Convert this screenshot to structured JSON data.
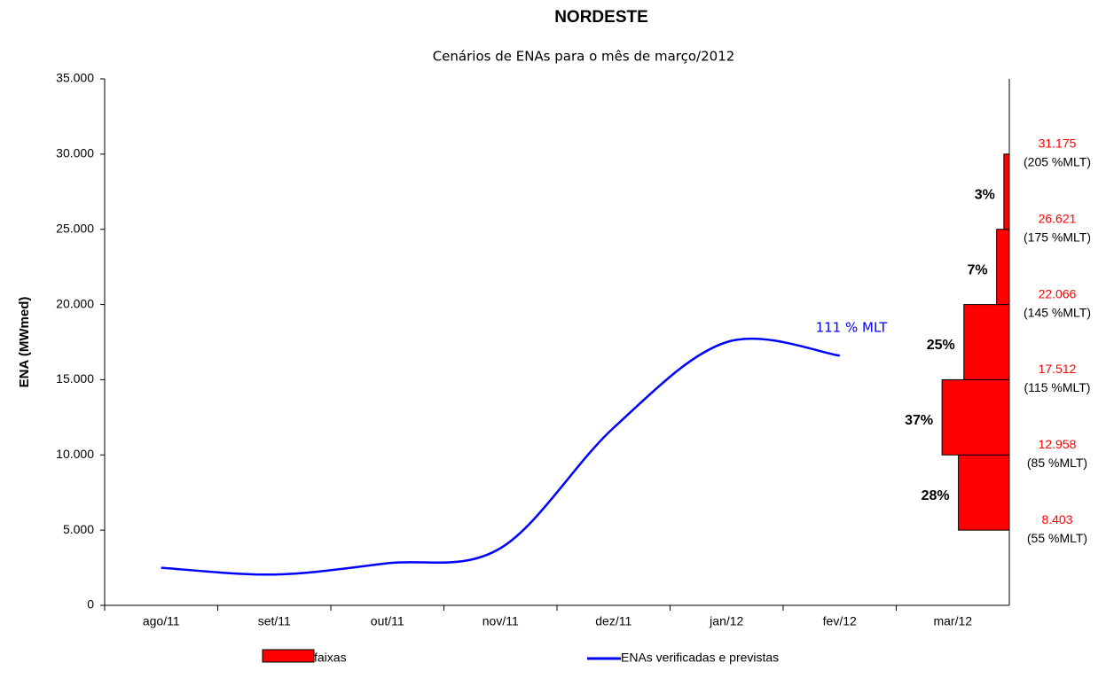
{
  "chart_data": {
    "type": "line",
    "title": "NORDESTE",
    "subtitle": "Cenários de ENAs para o mês de março/2012",
    "y_label": "ENA (MWmed)",
    "categories": [
      "ago/11",
      "set/11",
      "out/11",
      "nov/11",
      "dez/11",
      "jan/12",
      "fev/12",
      "mar/12"
    ],
    "series": [
      {
        "name": "ENAs verificadas e previstas",
        "color": "#0000ff",
        "values": [
          2500,
          2050,
          2800,
          3800,
          11800,
          17500,
          16600,
          null
        ]
      }
    ],
    "annotation": "111 % MLT",
    "faixas": {
      "type": "histogram",
      "name": "faixas",
      "color": "#ff0000",
      "bins": [
        5000,
        10000,
        15000,
        20000,
        25000,
        30000
      ],
      "values": [
        28,
        37,
        25,
        7,
        3
      ],
      "value_labels": [
        "28%",
        "37%",
        "25%",
        "7%",
        "3%"
      ],
      "boundary_labels": [
        {
          "label": "8.403",
          "mlt": "(55 %MLT)"
        },
        {
          "label": "12.958",
          "mlt": "(85 %MLT)"
        },
        {
          "label": "17.512",
          "mlt": "(115 %MLT)"
        },
        {
          "label": "22.066",
          "mlt": "(145 %MLT)"
        },
        {
          "label": "26.621",
          "mlt": "(175 %MLT)"
        },
        {
          "label": "31.175",
          "mlt": "(205 %MLT)"
        }
      ]
    },
    "ylim": [
      0,
      35000
    ],
    "yticks": [
      0,
      {
        "value": 5000,
        "label": "5.000"
      },
      {
        "value": 10000,
        "label": "10.000"
      },
      {
        "value": 15000,
        "label": "15.000"
      },
      {
        "value": 20000,
        "label": "20.000"
      },
      {
        "value": 25000,
        "label": "25.000"
      },
      {
        "value": 30000,
        "label": "30.000"
      },
      {
        "value": 35000,
        "label": "35.000"
      }
    ],
    "grid": false
  }
}
